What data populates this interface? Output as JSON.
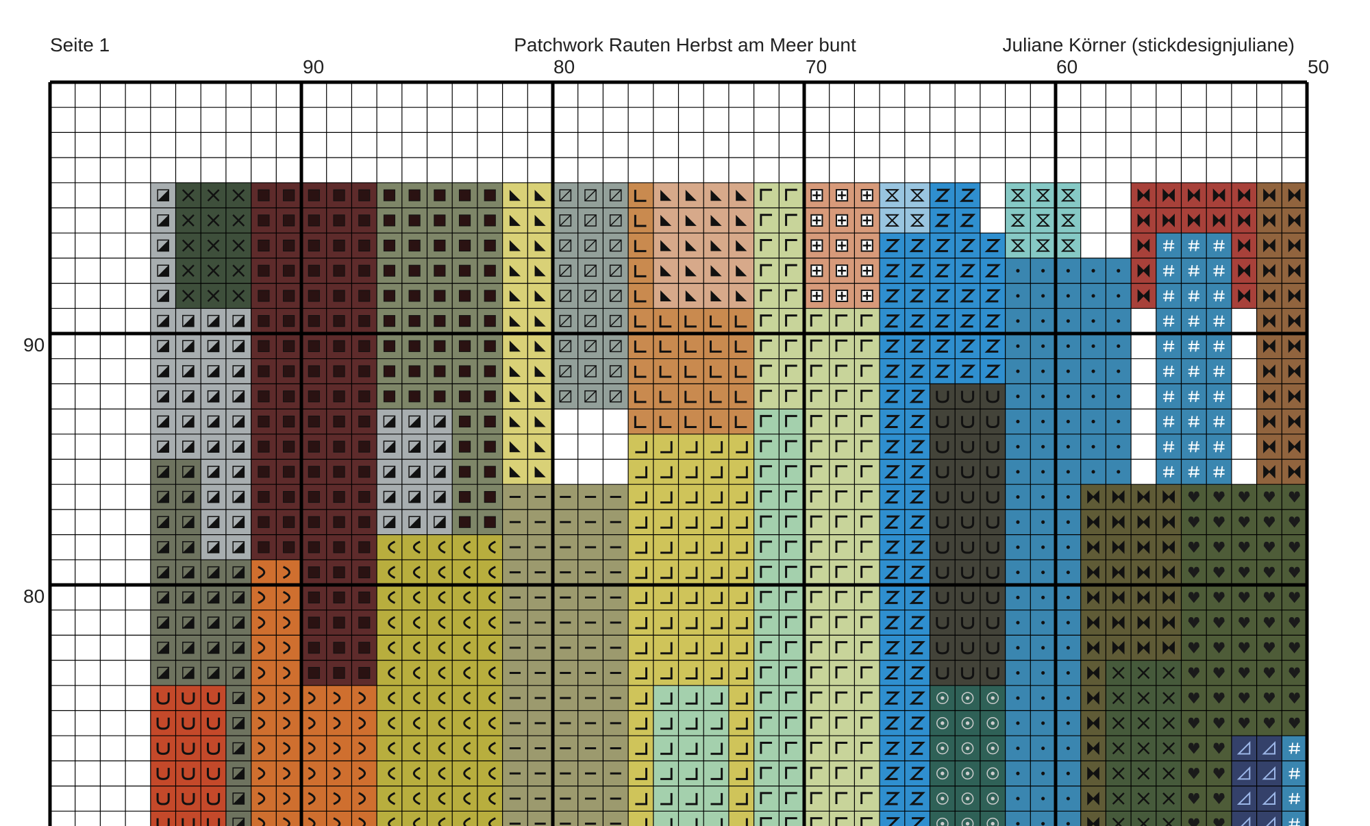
{
  "header": {
    "page_label": "Seite 1",
    "title": "Patchwork Rauten Herbst am Meer bunt",
    "designer": "Juliane Körner (stickdesignjuliane)"
  },
  "column_labels": [
    "90",
    "80",
    "70",
    "60",
    "50"
  ],
  "row_labels": [
    "90",
    "80"
  ],
  "palette": {
    "lightgray": "#a8aeb0",
    "darkgray": "#6e735f",
    "darkgreen": "#3e4f3b",
    "maroon": "#5e2b2b",
    "graygreen": "#7e8668",
    "sage": "#93a09a",
    "yellow": "#d9d177",
    "tan": "#c98a4f",
    "peach": "#d7a98a",
    "palelime": "#c8d49a",
    "salmon": "#d79a7a",
    "lightblue": "#99c5e0",
    "blue": "#2f8fcf",
    "aqua": "#86c9c5",
    "red": "#a8413a",
    "brown": "#91643e",
    "orange": "#cf6f2f",
    "redorange": "#c4492a",
    "olive": "#b8ae3e",
    "khaki": "#9c9a6e",
    "mint": "#a4d0ad",
    "mustard": "#cfc45a",
    "charcoal": "#434339",
    "teal": "#2f6157",
    "olivebrown": "#5f5b36",
    "moss": "#4e5c38",
    "forest": "#465a3b",
    "navy": "#34416a",
    "seablue": "#3a86b0"
  },
  "icons": {
    "pattern_symbols": [
      "diagonal-split-square",
      "x-mark",
      "dark-square",
      "slashed-square",
      "letter-l",
      "letter-n",
      "corner-bracket",
      "cross-box",
      "hourglass",
      "letter-z",
      "dot",
      "bowtie",
      "hash",
      "letter-u",
      "letter-c",
      "dash",
      "heart",
      "circle-dot",
      "triangle"
    ]
  }
}
